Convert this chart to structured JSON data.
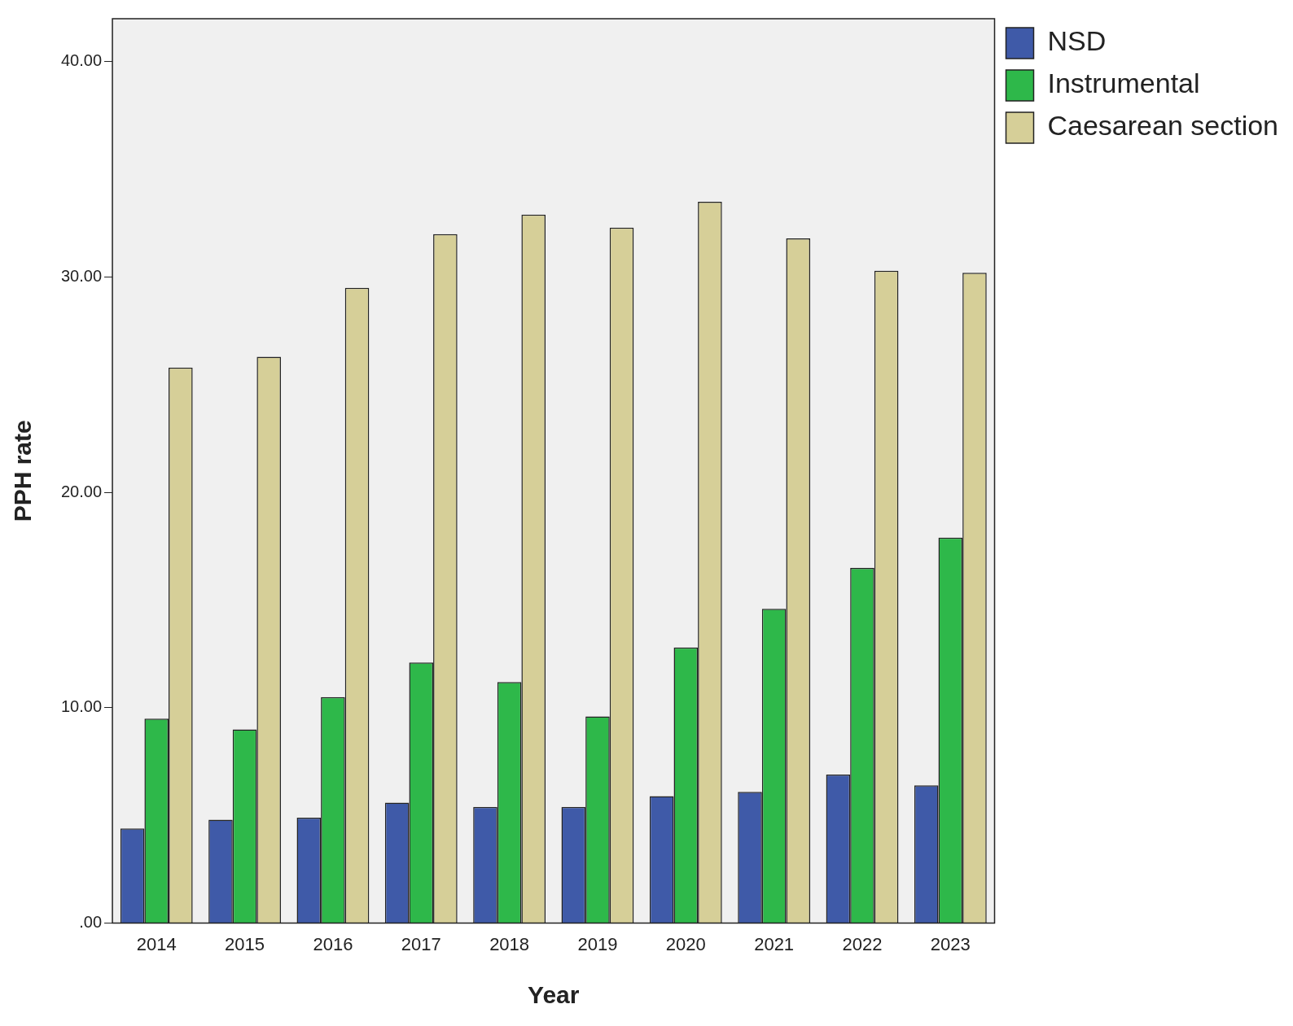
{
  "chart_data": {
    "type": "bar",
    "xlabel": "Year",
    "ylabel": "PPH rate",
    "categories": [
      "2014",
      "2015",
      "2016",
      "2017",
      "2018",
      "2019",
      "2020",
      "2021",
      "2022",
      "2023"
    ],
    "series": [
      {
        "name": "NSD",
        "color": "#3f5aa8",
        "values": [
          4.4,
          4.8,
          4.9,
          5.6,
          5.4,
          5.4,
          5.9,
          6.1,
          6.9,
          6.4
        ]
      },
      {
        "name": "Instrumental",
        "color": "#2eb84a",
        "values": [
          9.5,
          9.0,
          10.5,
          12.1,
          11.2,
          9.6,
          12.8,
          14.6,
          16.5,
          17.9
        ]
      },
      {
        "name": "Caesarean section",
        "color": "#d6cf98",
        "values": [
          25.8,
          26.3,
          29.5,
          32.0,
          32.9,
          32.3,
          33.5,
          31.8,
          30.3,
          30.2
        ]
      }
    ],
    "ylim": [
      0,
      42
    ],
    "yticks": [
      {
        "value": 0,
        "label": ".00"
      },
      {
        "value": 10,
        "label": "10.00"
      },
      {
        "value": 20,
        "label": "20.00"
      },
      {
        "value": 30,
        "label": "30.00"
      },
      {
        "value": 40,
        "label": "40.00"
      }
    ],
    "legend": "top right"
  }
}
